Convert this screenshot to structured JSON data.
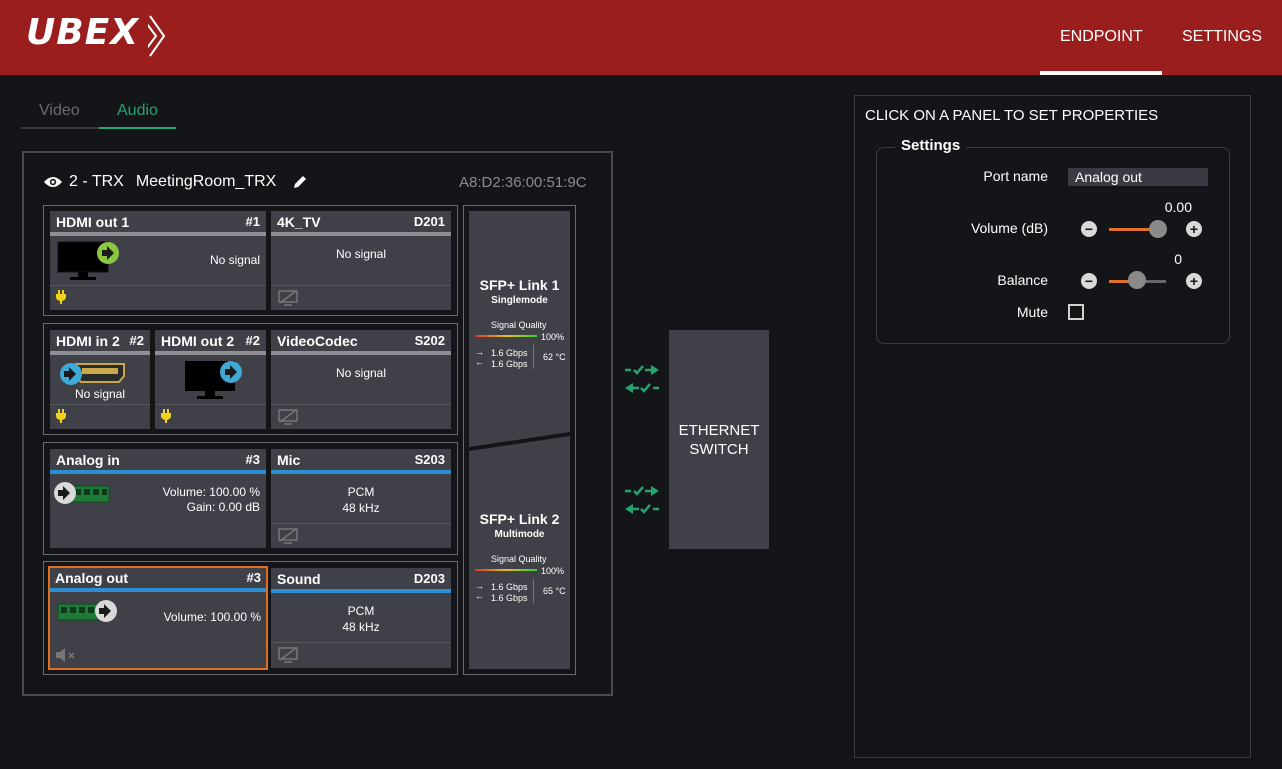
{
  "app": {
    "logo": "UBEX"
  },
  "nav": {
    "endpoint": "ENDPOINT",
    "settings": "SETTINGS"
  },
  "subtabs": {
    "video": "Video",
    "audio": "Audio"
  },
  "device": {
    "title": "2 - TRX",
    "name": "MeetingRoom_TRX",
    "mac": "A8:D2:36:00:51:9C"
  },
  "panels": {
    "hdmi_out_1": {
      "title": "HDMI out 1",
      "num": "#1",
      "status": "No signal"
    },
    "tv_4k": {
      "title": "4K_TV",
      "num": "D201",
      "status": "No signal"
    },
    "hdmi_in_2": {
      "title": "HDMI in 2",
      "num": "#2",
      "status": "No signal"
    },
    "hdmi_out_2": {
      "title": "HDMI out 2",
      "num": "#2"
    },
    "videocodec": {
      "title": "VideoCodec",
      "num": "S202",
      "status": "No signal"
    },
    "analog_in": {
      "title": "Analog in",
      "num": "#3",
      "volume": "Volume: 100.00 %",
      "gain": "Gain: 0.00 dB"
    },
    "mic": {
      "title": "Mic",
      "num": "S203",
      "format": "PCM",
      "rate": "48 kHz"
    },
    "analog_out": {
      "title": "Analog out",
      "num": "#3",
      "volume": "Volume: 100.00 %"
    },
    "sound": {
      "title": "Sound",
      "num": "D203",
      "format": "PCM",
      "rate": "48 kHz"
    }
  },
  "sfp": {
    "link1": {
      "title": "SFP+ Link 1",
      "mode": "Singlemode",
      "quality_label": "Signal Quality",
      "quality": "100%",
      "tx": "1.6 Gbps",
      "rx": "1.6 Gbps",
      "temp": "62 °C"
    },
    "link2": {
      "title": "SFP+ Link 2",
      "mode": "Multimode",
      "quality_label": "Signal Quality",
      "quality": "100%",
      "tx": "1.6 Gbps",
      "rx": "1.6 Gbps",
      "temp": "65 °C"
    }
  },
  "ethernet": {
    "line1": "ETHERNET",
    "line2": "SWITCH"
  },
  "properties": {
    "title": "CLICK ON A PANEL TO SET PROPERTIES",
    "legend": "Settings",
    "port_name_label": "Port name",
    "port_name_value": "Analog out",
    "volume_label": "Volume (dB)",
    "volume_value": "0.00",
    "balance_label": "Balance",
    "balance_value": "0",
    "mute_label": "Mute",
    "minus": "−",
    "plus": "+"
  },
  "colors": {
    "topbar": "#9b1e1f",
    "accent_green": "#27a36f",
    "selected_orange": "#e0701e",
    "audio_blue": "#2b8fd1",
    "slider_orange": "#e0702a"
  }
}
